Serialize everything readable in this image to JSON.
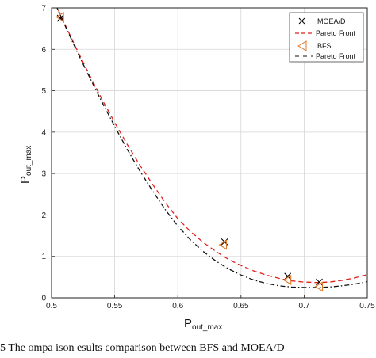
{
  "chart_data": {
    "type": "scatter",
    "title": "",
    "xlabel": "P",
    "xlabel_sub": "out_max",
    "ylabel": "P",
    "ylabel_sub": "out_max",
    "xlim": [
      0.5,
      0.75
    ],
    "ylim": [
      0,
      7
    ],
    "xticks": [
      "0.5",
      "0.55",
      "0.6",
      "0.65",
      "0.7",
      "0.75"
    ],
    "yticks": [
      "0",
      "1",
      "2",
      "3",
      "4",
      "5",
      "6",
      "7"
    ],
    "grid": true,
    "legend_position": "top-right",
    "series": [
      {
        "name": "MOEA/D",
        "kind": "marker",
        "marker": "x",
        "color": "#000000",
        "x": [
          0.507,
          0.637,
          0.687,
          0.712
        ],
        "y": [
          6.75,
          1.35,
          0.52,
          0.38
        ]
      },
      {
        "name": "Pareto Front",
        "kind": "line",
        "dash": "dashed",
        "color": "#e0201b",
        "x": [
          0.5,
          0.51,
          0.52,
          0.53,
          0.54,
          0.55,
          0.56,
          0.57,
          0.58,
          0.59,
          0.6,
          0.61,
          0.62,
          0.63,
          0.64,
          0.65,
          0.66,
          0.67,
          0.68,
          0.69,
          0.7,
          0.71,
          0.72,
          0.73,
          0.74,
          0.75
        ],
        "y": [
          7.3,
          6.64,
          6.0,
          5.38,
          4.79,
          4.23,
          3.7,
          3.2,
          2.74,
          2.3,
          1.91,
          1.6,
          1.34,
          1.12,
          0.93,
          0.78,
          0.65,
          0.55,
          0.47,
          0.41,
          0.38,
          0.37,
          0.38,
          0.42,
          0.48,
          0.56
        ]
      },
      {
        "name": "BFS",
        "kind": "marker",
        "marker": "triangle-left",
        "color": "#e07a2b",
        "x": [
          0.507,
          0.636,
          0.687,
          0.712
        ],
        "y": [
          6.78,
          1.28,
          0.43,
          0.27
        ]
      },
      {
        "name": "Pareto Front",
        "kind": "line",
        "dash": "dash-dot",
        "color": "#111111",
        "x": [
          0.5,
          0.51,
          0.52,
          0.53,
          0.54,
          0.55,
          0.56,
          0.57,
          0.58,
          0.59,
          0.6,
          0.61,
          0.62,
          0.63,
          0.64,
          0.65,
          0.66,
          0.67,
          0.68,
          0.69,
          0.7,
          0.71,
          0.72,
          0.73,
          0.74,
          0.75
        ],
        "y": [
          7.3,
          6.62,
          5.96,
          5.33,
          4.72,
          4.14,
          3.58,
          3.06,
          2.58,
          2.13,
          1.73,
          1.4,
          1.12,
          0.89,
          0.7,
          0.55,
          0.43,
          0.35,
          0.29,
          0.26,
          0.25,
          0.25,
          0.26,
          0.29,
          0.33,
          0.39
        ]
      }
    ]
  },
  "caption": "5    The   ompa  ison  esults comparison between BFS and MOEA/D"
}
